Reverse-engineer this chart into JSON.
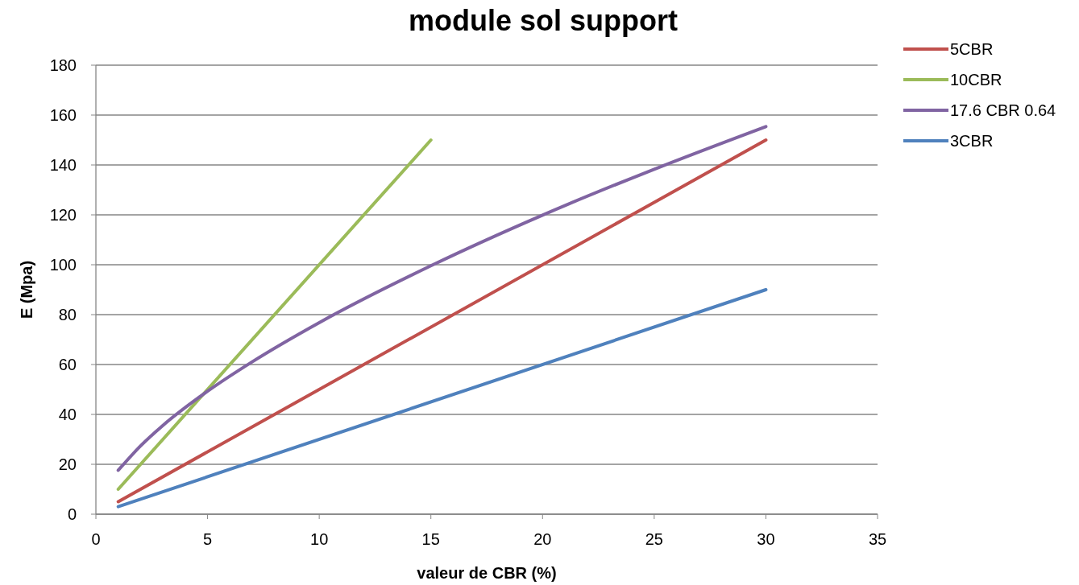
{
  "chart_data": {
    "type": "line",
    "title": "module sol support",
    "xlabel": "valeur de CBR (%)",
    "ylabel": "E (Mpa)",
    "xlim": [
      0,
      35
    ],
    "xticks": [
      0,
      5,
      10,
      15,
      20,
      25,
      30,
      35
    ],
    "ylim": [
      0,
      180
    ],
    "yticks": [
      0,
      20,
      40,
      60,
      80,
      100,
      120,
      140,
      160,
      180
    ],
    "grid": "y",
    "legend": "right",
    "marker": "none",
    "line_style": "solid",
    "series": [
      {
        "name": "5CBR",
        "color": "#c0504d",
        "x": [
          1,
          30
        ],
        "values": [
          5,
          150
        ]
      },
      {
        "name": "10CBR",
        "color": "#9bbb59",
        "x": [
          1,
          15
        ],
        "values": [
          10,
          150
        ]
      },
      {
        "name": "17.6 CBR 0.64",
        "color": "#8064a2",
        "x": [
          1,
          2,
          3,
          5,
          7,
          10,
          15,
          20,
          25,
          30
        ],
        "values": [
          17.6,
          27.4,
          35.6,
          49.3,
          61.1,
          76.8,
          99.6,
          119.9,
          138.3,
          155.4
        ]
      },
      {
        "name": "3CBR",
        "color": "#4f81bd",
        "x": [
          1,
          30
        ],
        "values": [
          3,
          90
        ]
      }
    ]
  }
}
